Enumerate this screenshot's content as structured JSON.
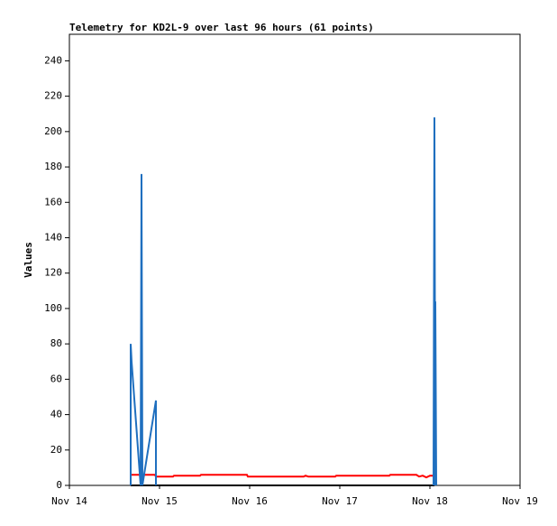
{
  "chart_data": {
    "type": "line",
    "title": "Telemetry for KD2L-9 over last 96 hours (61 points)",
    "y_label": "Values",
    "xlim": [
      14,
      19
    ],
    "ylim": [
      0,
      255
    ],
    "xticks": [
      {
        "value": 14,
        "label": "Nov 14"
      },
      {
        "value": 15,
        "label": "Nov 15"
      },
      {
        "value": 16,
        "label": "Nov 16"
      },
      {
        "value": 17,
        "label": "Nov 17"
      },
      {
        "value": 18,
        "label": "Nov 18"
      },
      {
        "value": 19,
        "label": "Nov 19"
      }
    ],
    "yticks": [
      0,
      20,
      40,
      60,
      80,
      100,
      120,
      140,
      160,
      180,
      200,
      220,
      240
    ],
    "series": [
      {
        "color": "#000000",
        "x": [
          14.68,
          18.05
        ],
        "values": [
          0,
          0
        ]
      },
      {
        "color": "#ff0000",
        "x": [
          14.68,
          14.95,
          14.96,
          15.15,
          15.16,
          15.45,
          15.46,
          15.97,
          15.98,
          16.6,
          16.62,
          16.65,
          16.95,
          16.96,
          17.55,
          17.56,
          17.85,
          17.88,
          17.92,
          17.96,
          18.0,
          18.05
        ],
        "values": [
          6,
          6,
          5,
          5,
          5.5,
          5.5,
          6,
          6,
          5,
          5,
          5.5,
          5,
          5,
          5.5,
          5.5,
          6,
          6,
          5,
          5.5,
          4.5,
          5.5,
          5.5
        ]
      },
      {
        "color": "#1f6fbf",
        "x": [
          14.68,
          14.68,
          14.69,
          14.79,
          14.8,
          14.81,
          14.96,
          14.96,
          17.9,
          18.04,
          18.05,
          18.06,
          18.06,
          18.07
        ],
        "values": [
          0,
          80,
          70,
          0,
          176,
          0,
          48,
          0,
          null,
          0,
          208,
          0,
          104,
          0
        ]
      }
    ]
  }
}
